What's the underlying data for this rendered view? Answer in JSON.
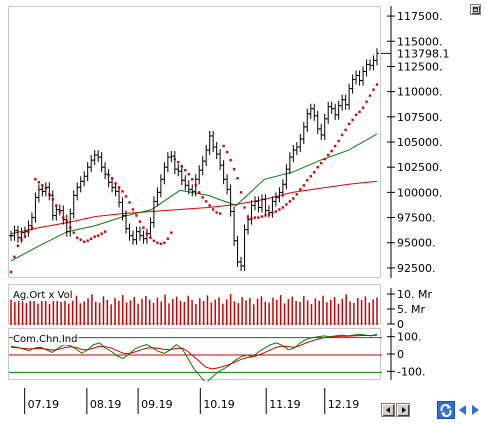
{
  "chart_data": [
    {
      "type": "line",
      "panel": "price",
      "ticker_label": "0 0 Ag.Ort x Vol (partially visible)",
      "y_ticks": [
        117500,
        115000,
        112500,
        110000,
        107500,
        105000,
        102500,
        100000,
        97500,
        95000,
        92500
      ],
      "y_tick_labels": [
        "117500.",
        "115000.",
        "112500.",
        "110000.",
        "107500.",
        "105000.",
        "102500.",
        "100000.",
        "97500.",
        "95000.",
        "92500."
      ],
      "ylim": [
        91500,
        118500
      ],
      "last_price_label": "113798.1",
      "last_price": 113798.1,
      "x_labels": [
        "07.19",
        "08.19",
        "09.19",
        "10.19",
        "11.19",
        "12.19"
      ],
      "series": [
        {
          "style": "candles",
          "color": "#000000",
          "values": [
            95800,
            96300,
            95600,
            96100,
            96200,
            96800,
            97600,
            99600,
            100400,
            100200,
            100600,
            99800,
            97800,
            98400,
            98300,
            97400,
            96200,
            98000,
            99800,
            100600,
            101200,
            101700,
            102600,
            103300,
            103800,
            103600,
            102600,
            101900,
            101100,
            100600,
            100200,
            99100,
            97800,
            96500,
            95800,
            95400,
            96200,
            95800,
            95500,
            96000,
            97100,
            99200,
            100100,
            101400,
            102600,
            103600,
            103700,
            102400,
            102200,
            101300,
            100800,
            100400,
            100200,
            101400,
            102300,
            103200,
            104300,
            105700,
            104600,
            103900,
            102800,
            101400,
            100400,
            98200,
            95300,
            93200,
            92800,
            96400,
            97400,
            98800,
            99200,
            98600,
            99400,
            98300,
            98100,
            99200,
            99600,
            100100,
            100900,
            102400,
            103600,
            104300,
            104600,
            105400,
            106600,
            107900,
            108400,
            107700,
            106400,
            105800,
            107400,
            108600,
            108400,
            107800,
            108700,
            109300,
            108800,
            110400,
            111300,
            111700,
            111200,
            112100,
            112800,
            112700,
            113200,
            113900
          ],
          "note": "approx daily close values"
        },
        {
          "name": "",
          "color": "#d40000",
          "style": "dots",
          "values": [
            92200,
            93700,
            94800,
            95400,
            95700,
            96200,
            96600,
            101400,
            101100,
            100800,
            100500,
            99900,
            99400,
            98800,
            98200,
            97600,
            97200,
            96600,
            96100,
            95600,
            95400,
            95200,
            95300,
            95500,
            95700,
            95800,
            96000,
            96200,
            101800,
            101500,
            101000,
            100600,
            100200,
            99700,
            99100,
            98400,
            97800,
            97200,
            96600,
            96000,
            95600,
            95300,
            95100,
            95000,
            95100,
            95500,
            96100,
            103400,
            103100,
            102700,
            102300,
            101900,
            101400,
            100800,
            100100,
            99600,
            99200,
            98800,
            98400,
            98100,
            98000,
            104700,
            104100,
            103300,
            102400,
            101500,
            100100,
            98600,
            97600,
            97500,
            97600,
            97600,
            97700,
            97800,
            97900,
            98100,
            98200,
            98400,
            98600,
            98900,
            99200,
            99500,
            99900,
            100400,
            100800,
            101300,
            101700,
            102100,
            102600,
            103000,
            103400,
            103800,
            104200,
            104700,
            105200,
            105800,
            106300,
            106900,
            107300,
            107800,
            108100,
            108500,
            109100,
            109700,
            110300,
            110800
          ]
        },
        {
          "name": "",
          "color": "#e00000",
          "style": "line",
          "values": [
            96000,
            96600,
            97100,
            97700,
            98000,
            98200,
            98400,
            98600,
            98900,
            99400,
            100100,
            100500,
            100900,
            101200
          ]
        },
        {
          "name": "",
          "color": "#008000",
          "style": "line",
          "values": [
            93300,
            94800,
            96200,
            96800,
            97700,
            98400,
            100300,
            99800,
            98800,
            101400,
            102100,
            103300,
            104300,
            105900
          ]
        }
      ]
    },
    {
      "type": "bar",
      "panel": "volume",
      "label": "Ag.Ort x Vol",
      "y_tick_labels": [
        "10. Mr",
        "5. Mr",
        "0"
      ],
      "ylim": [
        0,
        12
      ],
      "color": "#cc0000",
      "values": [
        7.6,
        6.9,
        7.4,
        8.7,
        6.6,
        7.8,
        8.0,
        6.4,
        9.1,
        7.3,
        6.3,
        8.5,
        7.2,
        6.9,
        8.3,
        6.4,
        7.7,
        8.8,
        6.5,
        7.1,
        8.0,
        9.2,
        7.0,
        6.7,
        8.6,
        7.5,
        6.2,
        8.1,
        7.3,
        9.0,
        6.8,
        7.4,
        8.4,
        6.4,
        7.9,
        8.7,
        7.6,
        6.6,
        8.2,
        7.0,
        9.1,
        6.5,
        7.8,
        8.5,
        7.3,
        6.9,
        8.8,
        7.5,
        6.3,
        8.0,
        7.2,
        8.9,
        6.8,
        7.6,
        8.3,
        6.4,
        7.7,
        9.3,
        7.1,
        6.6,
        8.4,
        7.4,
        8.1,
        6.2,
        7.9,
        8.6,
        7.0,
        6.7,
        8.2,
        7.5,
        9.0,
        6.5,
        7.8,
        8.5,
        7.2,
        6.9,
        8.7,
        7.4,
        6.3,
        8.0,
        7.3,
        8.8,
        6.8,
        7.6,
        8.4,
        6.4,
        7.9,
        9.2,
        7.1,
        6.6,
        8.1,
        7.5,
        8.6,
        6.7,
        7.7,
        8.3
      ]
    },
    {
      "type": "line",
      "panel": "oscillator",
      "label": "Com.Chn.Ind",
      "y_tick_labels": [
        "100.",
        "0",
        "-100."
      ],
      "ylim": [
        -150,
        150
      ],
      "series": [
        {
          "name": "Com.Chn.Ind",
          "color": "#008000",
          "values": [
            50,
            45,
            35,
            25,
            40,
            45,
            30,
            15,
            40,
            60,
            55,
            35,
            10,
            30,
            60,
            70,
            40,
            20,
            -5,
            -20,
            5,
            35,
            50,
            60,
            40,
            20,
            10,
            30,
            60,
            35,
            -20,
            -80,
            -120,
            -160,
            -130,
            -100,
            -80,
            -60,
            -30,
            -10,
            0,
            -10,
            20,
            40,
            60,
            70,
            55,
            30,
            40,
            70,
            90,
            100,
            105,
            110,
            105,
            110,
            115,
            110,
            115,
            120,
            115,
            110,
            120
          ]
        },
        {
          "name": "",
          "color": "#cc0000",
          "values": [
            45,
            42,
            38,
            35,
            36,
            38,
            34,
            28,
            32,
            42,
            48,
            44,
            32,
            30,
            40,
            50,
            48,
            40,
            25,
            10,
            8,
            18,
            30,
            40,
            42,
            38,
            32,
            30,
            38,
            40,
            20,
            -10,
            -40,
            -70,
            -80,
            -75,
            -65,
            -55,
            -40,
            -25,
            -15,
            -10,
            0,
            15,
            30,
            45,
            52,
            48,
            45,
            55,
            70,
            82,
            92,
            100,
            102,
            105,
            108,
            108,
            110,
            112,
            113,
            112,
            114
          ]
        }
      ]
    }
  ]
}
